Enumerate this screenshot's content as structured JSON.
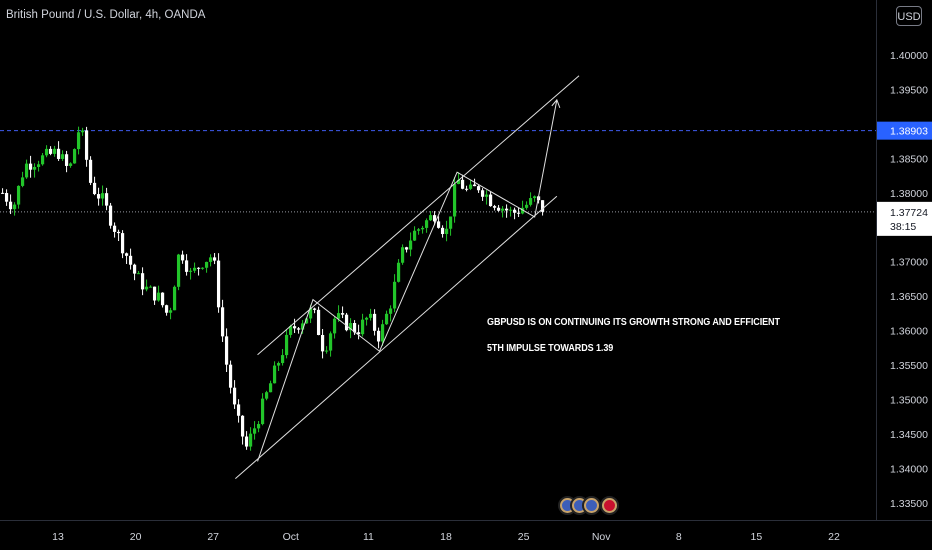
{
  "header": {
    "symbol_title": "British Pound / U.S. Dollar, 4h, OANDA",
    "currency": "USD"
  },
  "colors": {
    "up": "#26a69a",
    "up_body": "#22c52a",
    "down": "#ffffff",
    "alert_line": "#3f5cf0",
    "alert_label_bg": "#2962ff",
    "current_label_bg": "#ffffff",
    "text": "#d1d4dc"
  },
  "annotations": {
    "line1": "GBPUSD IS ON CONTINUING ITS GROWTH STRONG AND EFFICIENT",
    "line2": "5TH IMPULSE TOWARDS 1.39"
  },
  "events": [
    {
      "name": "us-flag-event"
    },
    {
      "name": "us-flag-event"
    },
    {
      "name": "us-flag-event"
    },
    {
      "name": "uk-flag-event"
    }
  ],
  "chart_data": {
    "type": "candlestick",
    "title": "British Pound / U.S. Dollar, 4h, OANDA",
    "ylim": [
      1.3325,
      1.408
    ],
    "y_ticks": [
      "1.40000",
      "1.39500",
      "1.38903",
      "1.38500",
      "1.38000",
      "1.37724",
      "1.37000",
      "1.36500",
      "1.36000",
      "1.35500",
      "1.35000",
      "1.34500",
      "1.34000",
      "1.33500"
    ],
    "y_tick_values": [
      1.4,
      1.395,
      1.38903,
      1.385,
      1.38,
      1.37724,
      1.37,
      1.365,
      1.36,
      1.355,
      1.35,
      1.345,
      1.34,
      1.335
    ],
    "x_ticks": [
      "13",
      "20",
      "27",
      "Oct",
      "11",
      "18",
      "25",
      "Nov",
      "8",
      "15",
      "22"
    ],
    "x_tick_dates": [
      "2021-09-13",
      "2021-09-20",
      "2021-09-27",
      "2021-10-04",
      "2021-10-11",
      "2021-10-18",
      "2021-10-25",
      "2021-11-01",
      "2021-11-08",
      "2021-11-15",
      "2021-11-22"
    ],
    "horizontal_line": {
      "value": 1.38903,
      "label": "1.38903"
    },
    "last_price": {
      "value": 1.37724,
      "label": "1.37724",
      "countdown": "38:15"
    },
    "drawings": {
      "channel_upper": [
        [
          "2021-10-01",
          1.3565
        ],
        [
          "2021-10-30",
          1.397
        ]
      ],
      "channel_lower": [
        [
          "2021-09-29",
          1.3385
        ],
        [
          "2021-10-28",
          1.3795
        ]
      ],
      "waves": [
        [
          "2021-10-01",
          1.341
        ],
        [
          "2021-10-06",
          1.3645
        ],
        [
          "2021-10-12",
          1.357
        ],
        [
          "2021-10-19",
          1.383
        ],
        [
          "2021-10-26",
          1.3765
        ],
        [
          "2021-10-28",
          1.3935
        ]
      ]
    },
    "price_path": [
      [
        "2021-09-08",
        1.38
      ],
      [
        "2021-09-09",
        1.378
      ],
      [
        "2021-09-10",
        1.384
      ],
      [
        "2021-09-13",
        1.386
      ],
      [
        "2021-09-14",
        1.383
      ],
      [
        "2021-09-15",
        1.39
      ],
      [
        "2021-09-16",
        1.381
      ],
      [
        "2021-09-17",
        1.379
      ],
      [
        "2021-09-20",
        1.368
      ],
      [
        "2021-09-21",
        1.366
      ],
      [
        "2021-09-22",
        1.365
      ],
      [
        "2021-09-23",
        1.362
      ],
      [
        "2021-09-24",
        1.372
      ],
      [
        "2021-09-25",
        1.368
      ],
      [
        "2021-09-26",
        1.37
      ],
      [
        "2021-09-27",
        1.371
      ],
      [
        "2021-09-28",
        1.357
      ],
      [
        "2021-09-29",
        1.348
      ],
      [
        "2021-09-30",
        1.343
      ],
      [
        "2021-10-01",
        1.347
      ],
      [
        "2021-10-03",
        1.356
      ],
      [
        "2021-10-04",
        1.36
      ],
      [
        "2021-10-06",
        1.363
      ],
      [
        "2021-10-07",
        1.357
      ],
      [
        "2021-10-08",
        1.362
      ],
      [
        "2021-10-10",
        1.36
      ],
      [
        "2021-10-11",
        1.362
      ],
      [
        "2021-10-12",
        1.359
      ],
      [
        "2021-10-13",
        1.364
      ],
      [
        "2021-10-14",
        1.371
      ],
      [
        "2021-10-15",
        1.374
      ],
      [
        "2021-10-17",
        1.377
      ],
      [
        "2021-10-18",
        1.374
      ],
      [
        "2021-10-19",
        1.382
      ],
      [
        "2021-10-20",
        1.38
      ],
      [
        "2021-10-21",
        1.381
      ],
      [
        "2021-10-22",
        1.379
      ],
      [
        "2021-10-24",
        1.377
      ],
      [
        "2021-10-25",
        1.378
      ],
      [
        "2021-10-26",
        1.379
      ],
      [
        "2021-10-27",
        1.3772
      ]
    ]
  }
}
